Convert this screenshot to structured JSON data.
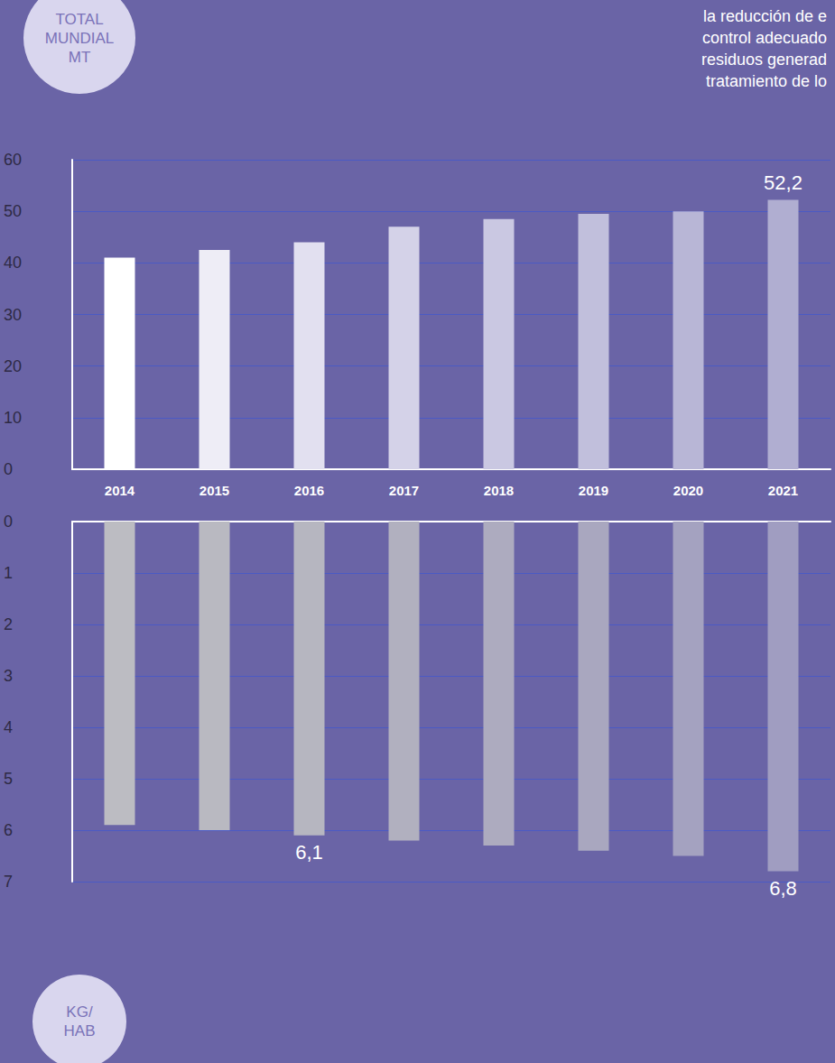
{
  "chart_data": [
    {
      "type": "bar",
      "ylabel": "TOTAL MUNDIAL MT",
      "annotations": [
        "la reducción de e",
        "control adecuado",
        "residuos generad",
        "tratamiento de lo"
      ],
      "categories": [
        "2014",
        "2015",
        "2016",
        "2017",
        "2018",
        "2019",
        "2020",
        "2021"
      ],
      "values": [
        41,
        42.5,
        44,
        47,
        48.5,
        49.5,
        50,
        52.2
      ],
      "value_labels": [
        null,
        null,
        null,
        null,
        null,
        null,
        null,
        "52,2"
      ],
      "colors": [
        "#ffffff",
        "#eeedf6",
        "#e2e0f0",
        "#d4d2e8",
        "#cac8e2",
        "#c1bfdc",
        "#b8b6d6",
        "#b0aed1"
      ],
      "ylim": [
        0,
        60
      ],
      "yticks": [
        0,
        10,
        20,
        30,
        40,
        50,
        60
      ],
      "grid": true,
      "tick_labels": true
    },
    {
      "type": "bar",
      "ylabel": "KG/HAB",
      "categories": [
        "2014",
        "2015",
        "2016",
        "2017",
        "2018",
        "2019",
        "2020",
        "2021"
      ],
      "values": [
        5.9,
        6.0,
        6.1,
        6.2,
        6.3,
        6.4,
        6.5,
        6.8
      ],
      "value_labels": [
        null,
        null,
        "6,1",
        null,
        null,
        null,
        null,
        "6,8"
      ],
      "colors": [
        "#bcbcc2",
        "#b9b9c1",
        "#b6b6c0",
        "#b1b0bf",
        "#adabbf",
        "#a9a7bf",
        "#a4a2c0",
        "#a09dc1"
      ],
      "ylim": [
        7,
        0
      ],
      "yticks": [
        0,
        1,
        2,
        3,
        4,
        5,
        6,
        7
      ],
      "grid": true,
      "tick_labels": "y"
    }
  ]
}
